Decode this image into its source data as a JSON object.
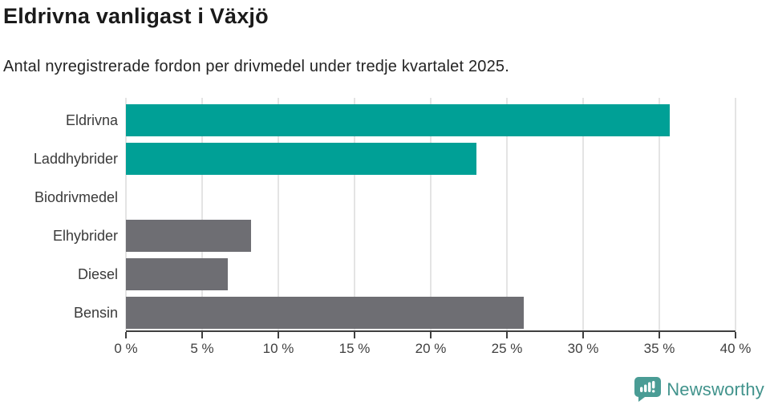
{
  "header": {
    "title": "Eldrivna vanligast i Växjö",
    "subtitle": "Antal nyregistrerade fordon per drivmedel under tredje kvartalet 2025."
  },
  "chart_data": {
    "type": "bar",
    "orientation": "horizontal",
    "title": "Eldrivna vanligast i Växjö",
    "subtitle": "Antal nyregistrerade fordon per drivmedel under tredje kvartalet 2025.",
    "categories": [
      "Eldrivna",
      "Laddhybrider",
      "Biodrivmedel",
      "Elhybrider",
      "Diesel",
      "Bensin"
    ],
    "values": [
      35.7,
      23.0,
      0,
      8.2,
      6.7,
      26.1
    ],
    "unit": "%",
    "bar_colors": [
      "#00a096",
      "#00a096",
      "#00a096",
      "#6e6e73",
      "#6e6e73",
      "#6e6e73"
    ],
    "xlim": [
      0,
      40
    ],
    "x_ticks": [
      0,
      5,
      10,
      15,
      20,
      25,
      30,
      35,
      40
    ],
    "x_tick_labels": [
      "0 %",
      "5 %",
      "10 %",
      "15 %",
      "20 %",
      "25 %",
      "30 %",
      "35 %",
      "40 %"
    ],
    "grid": true,
    "legend": false,
    "xlabel": "",
    "ylabel": ""
  },
  "colors": {
    "highlight": "#00a096",
    "muted": "#6e6e73",
    "axis": "#3f3f3f",
    "gridline": "#e4e4e4",
    "brand": "#41938c"
  },
  "branding": {
    "logo_text": "Newsworthy",
    "logo_icon": "newsworthy-speech-bubble-barchart-icon"
  }
}
